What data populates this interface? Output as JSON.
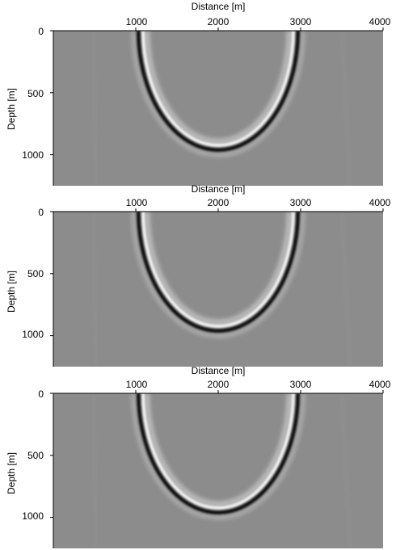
{
  "chart_data": [
    {
      "type": "heatmap",
      "xlabel": "Distance [m]",
      "ylabel": "Depth [m]",
      "xlim": [
        0,
        4000
      ],
      "ylim": [
        1250,
        0
      ],
      "xticks": [
        1000,
        2000,
        3000,
        4000
      ],
      "yticks": [
        0,
        500,
        1000
      ],
      "xtick_labels": [
        "1000",
        "2000",
        "3000",
        "4000"
      ],
      "ytick_labels": [
        "0",
        "500",
        "1000"
      ],
      "reflector": {
        "type": "semi-ellipse",
        "center_x": 2000,
        "center_z": 0,
        "half_width": 950,
        "depth": 950
      },
      "background": "#8c8c8c"
    },
    {
      "type": "heatmap",
      "xlabel": "Distance [m]",
      "ylabel": "Depth [m]",
      "xlim": [
        0,
        4000
      ],
      "ylim": [
        1250,
        0
      ],
      "xticks": [
        1000,
        2000,
        3000,
        4000
      ],
      "yticks": [
        0,
        500,
        1000
      ],
      "xtick_labels": [
        "1000",
        "2000",
        "3000",
        "4000"
      ],
      "ytick_labels": [
        "0",
        "500",
        "1000"
      ],
      "reflector": {
        "type": "semi-ellipse",
        "center_x": 2000,
        "center_z": 0,
        "half_width": 950,
        "depth": 950
      },
      "background": "#8c8c8c"
    },
    {
      "type": "heatmap",
      "xlabel": "Distance [m]",
      "ylabel": "Depth [m]",
      "xlim": [
        0,
        4000
      ],
      "ylim": [
        1250,
        0
      ],
      "xticks": [
        1000,
        2000,
        3000,
        4000
      ],
      "yticks": [
        0,
        500,
        1000
      ],
      "xtick_labels": [
        "1000",
        "2000",
        "3000",
        "4000"
      ],
      "ytick_labels": [
        "0",
        "500",
        "1000"
      ],
      "reflector": {
        "type": "semi-ellipse",
        "center_x": 2000,
        "center_z": 0,
        "half_width": 950,
        "depth": 950
      },
      "background": "#8c8c8c"
    }
  ]
}
